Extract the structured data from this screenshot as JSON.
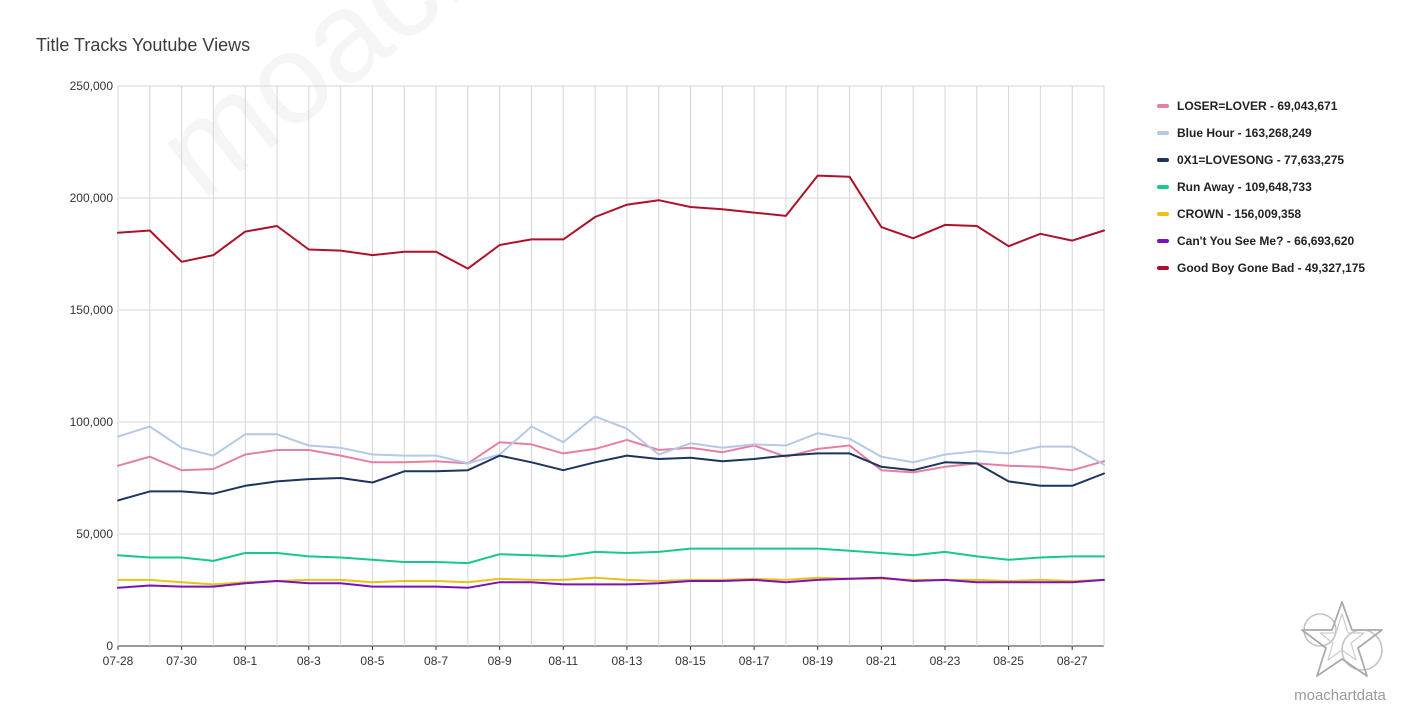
{
  "chart_data": {
    "type": "line",
    "title": "Title Tracks Youtube Views",
    "xlabel": "",
    "ylabel": "",
    "ylim": [
      0,
      250000
    ],
    "yticks": [
      0,
      50000,
      100000,
      150000,
      200000,
      250000
    ],
    "ytick_labels": [
      "0",
      "50,000",
      "100,000",
      "150,000",
      "200,000",
      "250,000"
    ],
    "x": [
      "07-28",
      "07-29",
      "07-30",
      "07-31",
      "08-1",
      "08-2",
      "08-3",
      "08-4",
      "08-5",
      "08-6",
      "08-7",
      "08-8",
      "08-9",
      "08-10",
      "08-11",
      "08-12",
      "08-13",
      "08-14",
      "08-15",
      "08-16",
      "08-17",
      "08-18",
      "08-19",
      "08-20",
      "08-21",
      "08-22",
      "08-23",
      "08-24",
      "08-25",
      "08-26",
      "08-27",
      "08-28"
    ],
    "xtick_labels": [
      "07-28",
      "07-30",
      "08-1",
      "08-3",
      "08-5",
      "08-7",
      "08-9",
      "08-11",
      "08-13",
      "08-15",
      "08-17",
      "08-19",
      "08-21",
      "08-23",
      "08-25",
      "08-27"
    ],
    "grid": true,
    "legend_position": "right",
    "series": [
      {
        "name": "LOSER=LOVER - 69,043,671",
        "color": "#e67fa0",
        "values": [
          80500,
          84500,
          78500,
          79000,
          85500,
          87500,
          87500,
          85000,
          82000,
          82000,
          82500,
          81500,
          91000,
          90000,
          86000,
          88000,
          92000,
          87500,
          88500,
          86500,
          89500,
          84500,
          88000,
          89500,
          78500,
          77500,
          80000,
          81500,
          80500,
          80000,
          78500,
          82500
        ]
      },
      {
        "name": "Blue Hour - 163,268,249",
        "color": "#b4c9e8",
        "values": [
          93500,
          98000,
          88500,
          85000,
          94500,
          94500,
          89500,
          88500,
          85500,
          85000,
          85000,
          81500,
          85500,
          98000,
          91000,
          102500,
          97000,
          85500,
          90500,
          88500,
          90000,
          89500,
          95000,
          92500,
          84500,
          82000,
          85500,
          87000,
          86000,
          89000,
          89000,
          81000
        ]
      },
      {
        "name": "0X1=LOVESONG - 77,633,275",
        "color": "#1c3460",
        "values": [
          65000,
          69000,
          69000,
          68000,
          71500,
          73500,
          74500,
          75000,
          73000,
          78000,
          78000,
          78500,
          85000,
          82000,
          78500,
          82000,
          85000,
          83500,
          84000,
          82500,
          83500,
          85000,
          86000,
          86000,
          80000,
          78500,
          82000,
          81500,
          73500,
          71500,
          71500,
          77000
        ]
      },
      {
        "name": "Run Away - 109,648,733",
        "color": "#16c98b",
        "values": [
          40500,
          39500,
          39500,
          38000,
          41500,
          41500,
          40000,
          39500,
          38500,
          37500,
          37500,
          37000,
          41000,
          40500,
          40000,
          42000,
          41500,
          42000,
          43500,
          43500,
          43500,
          43500,
          43500,
          42500,
          41500,
          40500,
          42000,
          40000,
          38500,
          39500,
          40000,
          40000
        ]
      },
      {
        "name": "CROWN - 156,009,358",
        "color": "#e8c21a",
        "values": [
          29500,
          29500,
          28500,
          27500,
          28500,
          29000,
          29500,
          29500,
          28500,
          29000,
          29000,
          28500,
          30000,
          29500,
          29500,
          30500,
          29500,
          29000,
          29500,
          29500,
          30000,
          29500,
          30500,
          30000,
          30000,
          29500,
          29500,
          29500,
          29000,
          29500,
          29000,
          29500
        ]
      },
      {
        "name": "Can't You See Me? - 66,693,620",
        "color": "#7d10b8",
        "values": [
          26000,
          27000,
          26500,
          26500,
          28000,
          29000,
          28000,
          28000,
          26500,
          26500,
          26500,
          26000,
          28500,
          28500,
          27500,
          27500,
          27500,
          28000,
          29000,
          29000,
          29500,
          28500,
          29500,
          30000,
          30500,
          29000,
          29500,
          28500,
          28500,
          28500,
          28500,
          29500
        ]
      },
      {
        "name": "Good Boy Gone Bad - 49,327,175",
        "color": "#ae1228",
        "values": [
          184500,
          185500,
          171500,
          174500,
          185000,
          187500,
          177000,
          176500,
          174500,
          176000,
          176000,
          168500,
          179000,
          181500,
          181500,
          191500,
          197000,
          199000,
          196000,
          195000,
          193500,
          192000,
          210000,
          209500,
          187000,
          182000,
          188000,
          187500,
          178500,
          184000,
          181000,
          185500
        ]
      }
    ]
  },
  "watermark": "moachartdata",
  "brand": {
    "name": "moachartdata",
    "icon": "star-icon"
  }
}
